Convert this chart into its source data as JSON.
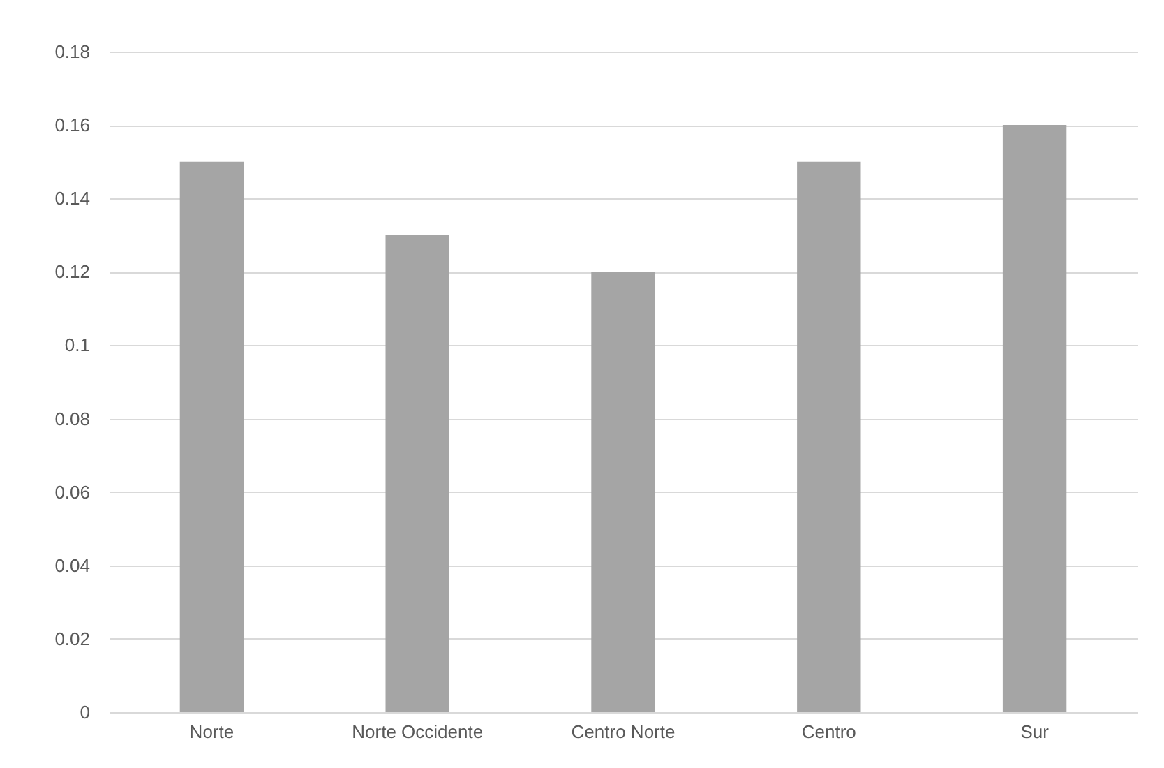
{
  "chart_data": {
    "type": "bar",
    "categories": [
      "Norte",
      "Norte Occidente",
      "Centro Norte",
      "Centro",
      "Sur"
    ],
    "values": [
      0.15,
      0.13,
      0.12,
      0.15,
      0.16
    ],
    "color": "#a5a5a5",
    "ylim": [
      0,
      0.18
    ],
    "yticks": [
      0,
      0.02,
      0.04,
      0.06,
      0.08,
      0.1,
      0.12,
      0.14,
      0.16,
      0.18
    ],
    "grid": "y"
  }
}
